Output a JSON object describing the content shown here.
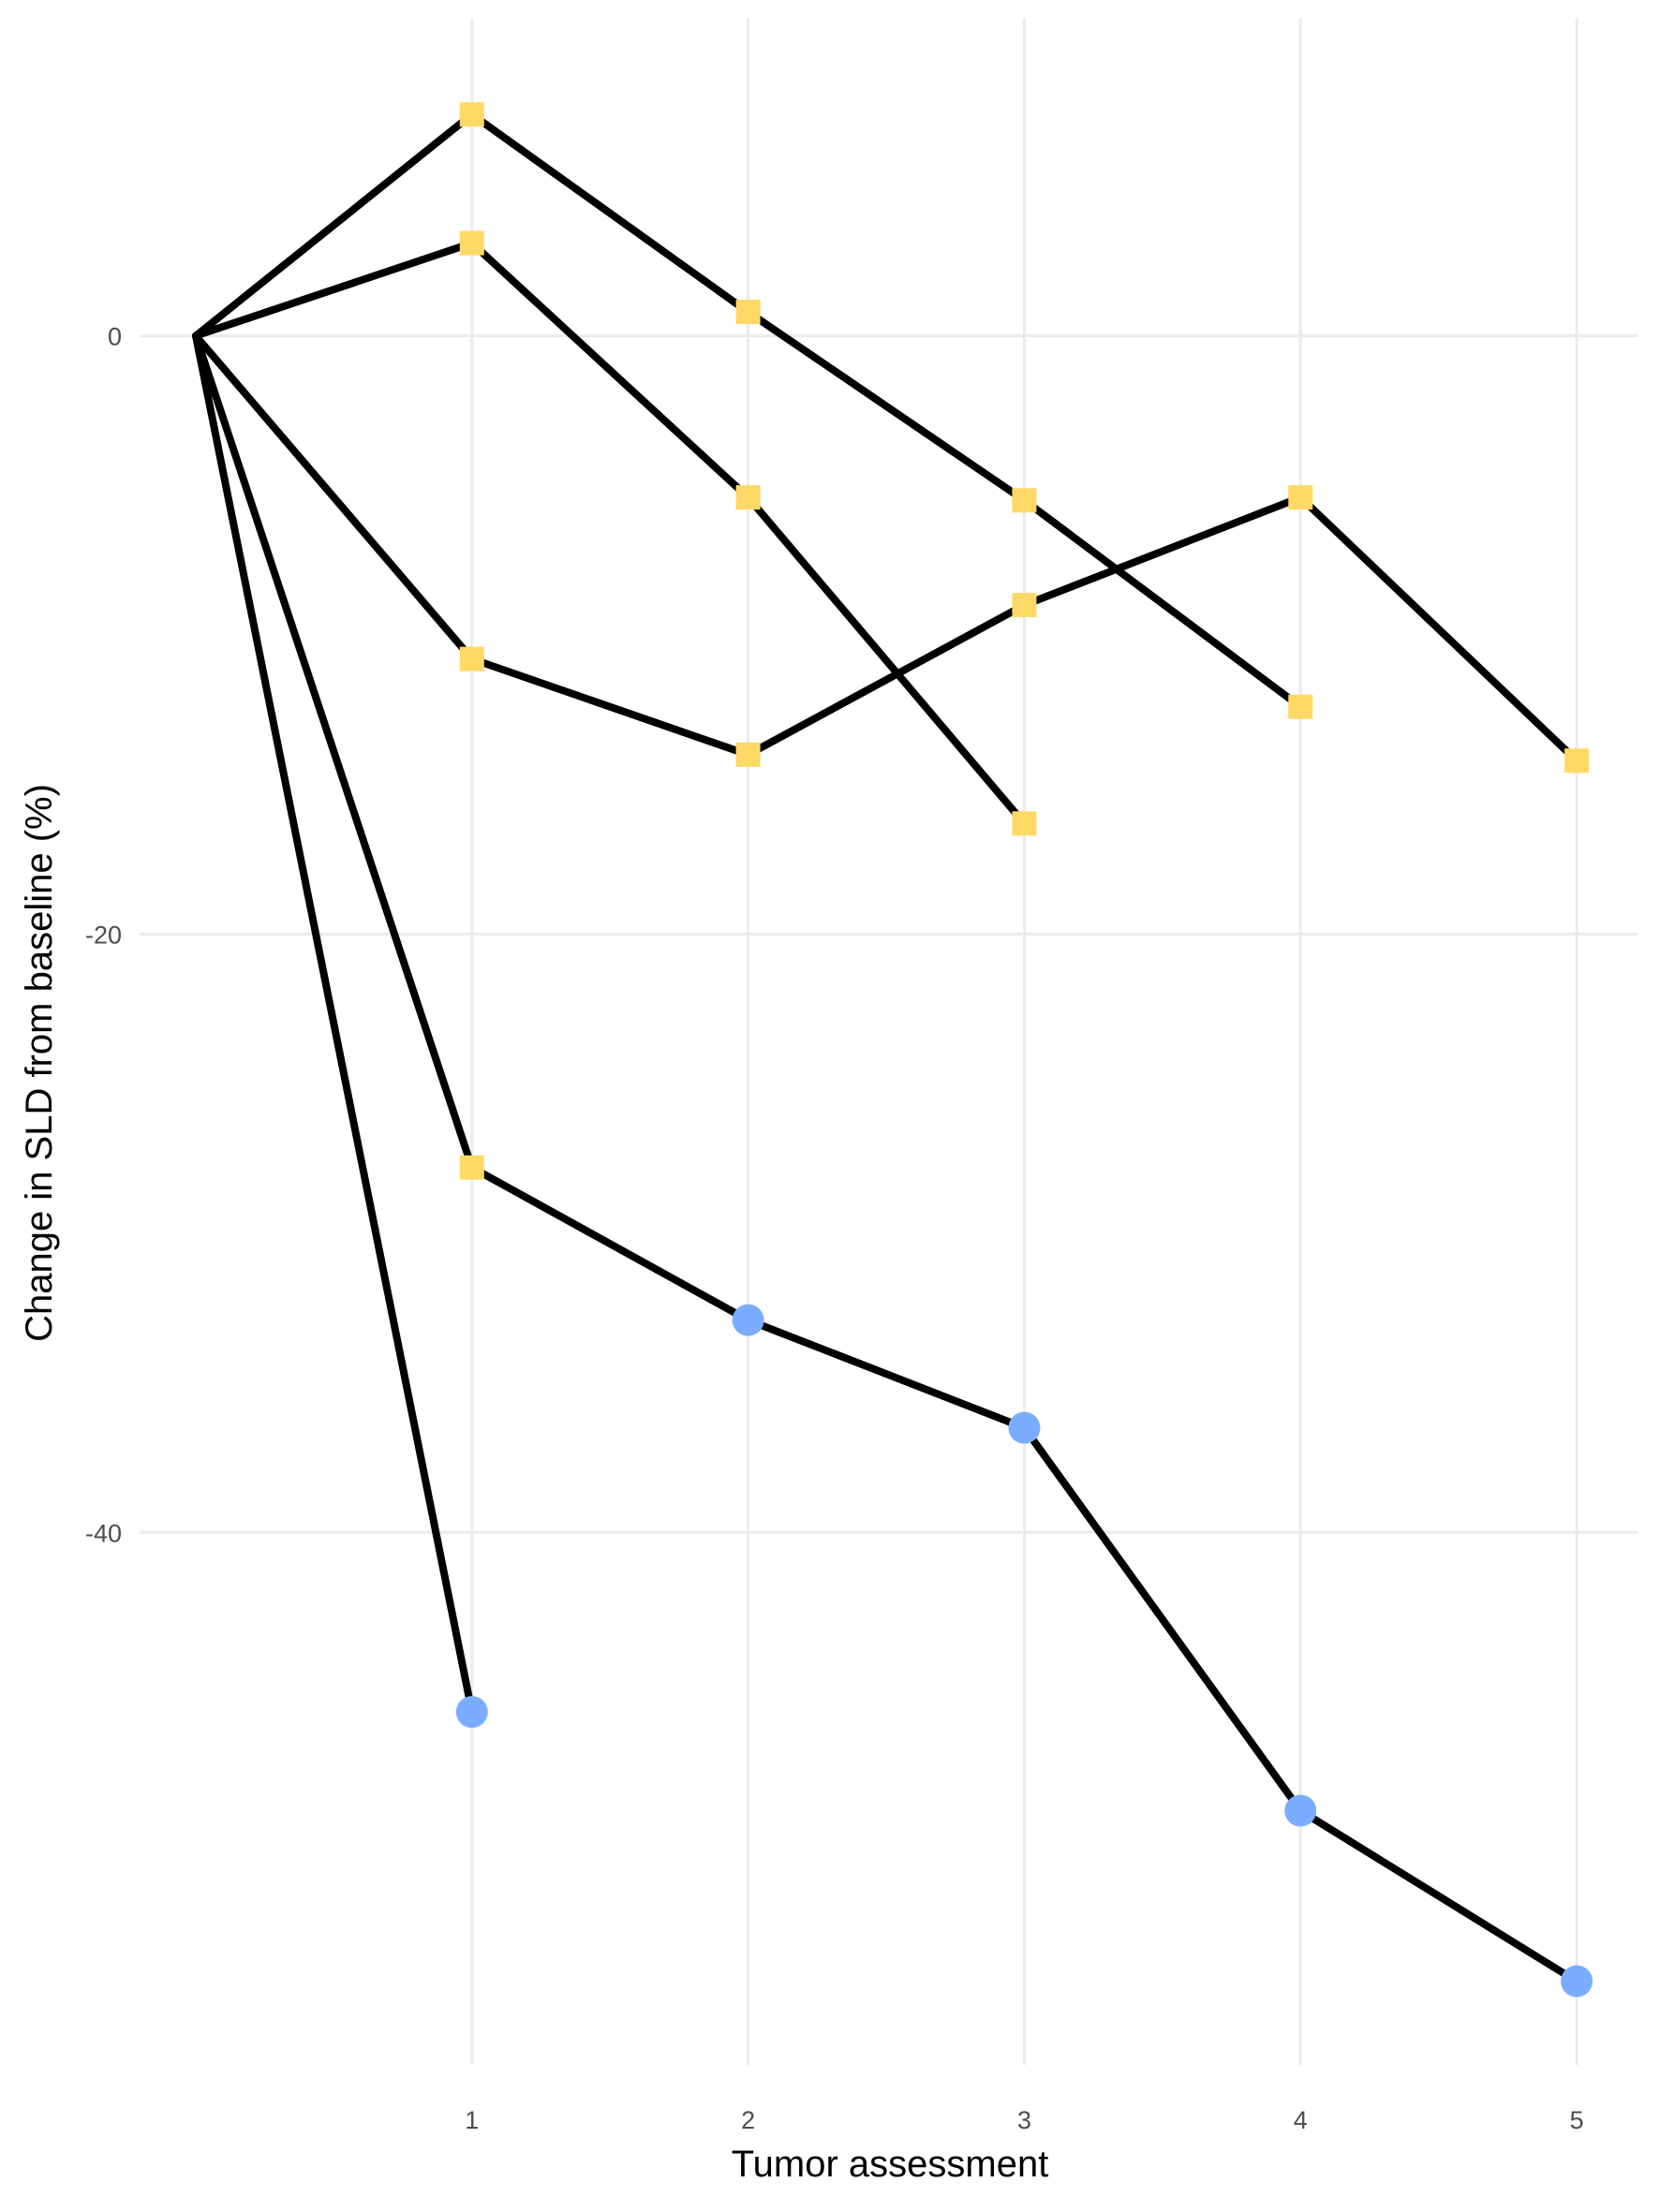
{
  "chart_data": {
    "type": "line",
    "xlabel": "Tumor assessment",
    "ylabel": "Change in SLD from baseline (%)",
    "xlim": [
      -0.2,
      5.22
    ],
    "ylim": [
      -57.8,
      10.6
    ],
    "x_ticks": [
      1,
      2,
      3,
      4,
      5
    ],
    "y_ticks": [
      0,
      -20,
      -40
    ],
    "x_tick_labels": [
      "1",
      "2",
      "3",
      "4",
      "5"
    ],
    "y_tick_labels": [
      "0",
      "-20",
      "-40"
    ],
    "grid": true,
    "marker_colors": {
      "yellow": "#FFD966",
      "blue": "#7AADFF"
    },
    "series": [
      {
        "x": [
          0,
          1,
          2,
          3,
          4
        ],
        "y": [
          0,
          7.4,
          0.8,
          -5.5,
          -12.4
        ],
        "markers": [
          "none",
          "square",
          "square",
          "square",
          "square"
        ]
      },
      {
        "x": [
          0,
          1,
          2,
          3
        ],
        "y": [
          0,
          3.1,
          -5.4,
          -16.3
        ],
        "markers": [
          "none",
          "square",
          "square",
          "square"
        ]
      },
      {
        "x": [
          0,
          1,
          2,
          3,
          4,
          5
        ],
        "y": [
          0,
          -10.8,
          -14.0,
          -9.0,
          -5.4,
          -14.2
        ],
        "markers": [
          "none",
          "square",
          "square",
          "square",
          "square",
          "square"
        ]
      },
      {
        "x": [
          0,
          1,
          2,
          3,
          4,
          5
        ],
        "y": [
          0,
          -27.8,
          -32.9,
          -36.5,
          -49.3,
          -55.0
        ],
        "markers": [
          "none",
          "square",
          "circle",
          "circle",
          "circle",
          "circle"
        ]
      },
      {
        "x": [
          0,
          1
        ],
        "y": [
          0,
          -46.0
        ],
        "markers": [
          "none",
          "circle"
        ]
      }
    ]
  }
}
